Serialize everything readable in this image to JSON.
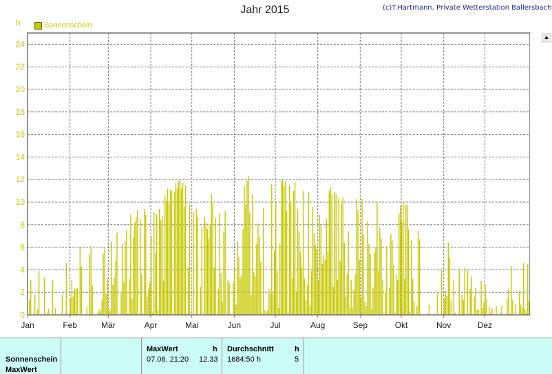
{
  "header": {
    "title": "Jahr 2015",
    "credit": "(c)T.Hartmann, Private Wetterstation Ballersbach"
  },
  "legend": {
    "label": "Sonnenschein",
    "color": "#c8c800"
  },
  "chart_data": {
    "type": "bar",
    "ylabel": "h",
    "ylim": [
      0,
      25
    ],
    "yticks": [
      0,
      2,
      4,
      6,
      8,
      10,
      12,
      14,
      16,
      18,
      20,
      22,
      24
    ],
    "grid": true,
    "legend_position": "top-left",
    "months": [
      "Jan",
      "Feb",
      "Mär",
      "Apr",
      "Mai",
      "Jun",
      "Jul",
      "Aug",
      "Sep",
      "Okt",
      "Nov",
      "Dez"
    ],
    "series": [
      {
        "name": "Sonnenschein",
        "color": "#c8c800",
        "values": [
          0,
          1.3,
          3.1,
          0,
          0,
          1.8,
          0,
          0.5,
          3.9,
          0,
          0,
          0,
          3.3,
          0,
          0.2,
          0.5,
          0,
          0,
          3.1,
          0,
          0.6,
          0,
          0.1,
          0,
          0,
          1.8,
          0,
          0.1,
          4.6,
          0.1,
          0,
          1.5,
          3.1,
          1.6,
          2.3,
          2.3,
          2.4,
          0,
          6,
          4.3,
          0,
          0,
          0,
          0.7,
          0,
          5.4,
          6.1,
          2.6,
          0,
          0,
          0,
          0.2,
          0.5,
          0.3,
          1.3,
          5.4,
          5.9,
          1.9,
          3.2,
          0.4,
          0.4,
          6.5,
          2.7,
          3.3,
          4.8,
          7.3,
          0,
          0,
          1.9,
          6.3,
          2.9,
          6.5,
          7.5,
          0.1,
          3.2,
          8.9,
          1.4,
          6.9,
          8.2,
          8.7,
          9.3,
          0,
          8.5,
          3.6,
          0.1,
          9.4,
          8.9,
          1.6,
          2.3,
          2.9,
          7,
          0.2,
          9.1,
          5.5,
          8.9,
          0.4,
          9.4,
          8.4,
          8.8,
          3,
          10.6,
          10.1,
          11.2,
          9.9,
          11.1,
          11,
          0,
          10.9,
          11.7,
          11.2,
          11.9,
          11.9,
          11.2,
          11.7,
          9.6,
          11.5,
          0.1,
          4.2,
          9.8,
          0,
          0,
          9.1,
          0,
          9.4,
          8.7,
          0,
          2.5,
          7.8,
          0,
          8.7,
          8.2,
          7.6,
          6.8,
          8,
          10.7,
          9.9,
          4.2,
          8.6,
          0,
          2.3,
          9,
          3.7,
          1.2,
          7.4,
          9.2,
          0,
          3.1,
          2.8,
          0,
          0,
          2.9,
          4.2,
          0.9,
          6.5,
          5.1,
          3.3,
          3.5,
          7.6,
          11.4,
          9.8,
          11.9,
          12.3,
          9.1,
          1.8,
          10.7,
          3.8,
          3.4,
          6.3,
          8.1,
          6.9,
          4.7,
          0.2,
          9.5,
          0.4,
          0.2,
          0.4,
          2.3,
          1.9,
          11.6,
          1.9,
          5.7,
          10.1,
          3.9,
          0.6,
          6.3,
          11.9,
          12,
          11.4,
          11.9,
          9.2,
          0.2,
          11.5,
          10,
          3.3,
          11,
          11.8,
          2.1,
          9.4,
          7.4,
          5.6,
          4.2,
          11,
          3.2,
          1.3,
          2.7,
          10.9,
          0.8,
          3.9,
          9.6,
          7.2,
          6.2,
          5.8,
          3.1,
          8.9,
          7.9,
          4.5,
          5.3,
          4.9,
          8.5,
          5.6,
          11,
          11.3,
          10.7,
          2.5,
          10.9,
          10.7,
          3.1,
          10.4,
          4.8,
          9.9,
          10.4,
          6.4,
          1.6,
          3.6,
          7.4,
          0.6,
          3.1,
          0.6,
          2.2,
          3.6,
          10.3,
          9.3,
          4.9,
          1.6,
          10.3,
          7.2,
          1.2,
          0.8,
          8.3,
          6.3,
          5.4,
          0.5,
          2.4,
          5.5,
          5.9,
          10,
          3.9,
          7.7,
          6.8,
          3.1,
          0,
          2,
          6.1,
          0.1,
          2.4,
          7.2,
          6.6,
          4.4,
          0.2,
          3.6,
          3.1,
          9,
          9.7,
          8.3,
          10,
          3.2,
          9.8,
          9.7,
          7.6,
          0.3,
          6.6,
          3.2,
          1.2,
          0,
          0.8,
          7.5,
          6.7,
          0,
          0,
          0,
          0,
          0,
          0.1,
          0.9,
          0,
          0,
          0,
          0.1,
          0,
          1.9,
          0,
          0,
          4.1,
          0,
          1.4,
          2.1,
          1.7,
          6.4,
          5.1,
          1.3,
          0,
          3.1,
          0.2,
          0,
          0,
          4.1,
          0,
          1.8,
          1.3,
          4.2,
          0,
          4,
          0,
          2.3,
          3.4,
          0,
          1.6,
          2.4,
          0.4,
          0.5,
          0,
          3,
          0.6,
          1.1,
          2.7,
          1.4,
          0,
          0.7,
          0.2,
          0.6,
          0,
          0,
          0.8,
          0,
          0,
          0.2,
          0.8,
          0,
          0,
          0,
          1.4,
          2.3,
          0.1,
          4.3,
          1.3,
          0,
          0.9,
          0,
          0,
          2.1,
          0.9,
          0.6,
          4.6,
          0.5,
          0.2,
          4.5,
          1.2
        ]
      }
    ]
  },
  "stats_table": {
    "row_labels": [
      "Sonnenschein",
      "MaxWert"
    ],
    "max_header": "MaxWert",
    "max_unit": "h",
    "max_date": "07.06.  21:20",
    "max_value": "12.33",
    "avg_header": "Durchschnitt",
    "avg_unit": "h",
    "avg_total": "1684:50 h",
    "avg_value": "5"
  }
}
